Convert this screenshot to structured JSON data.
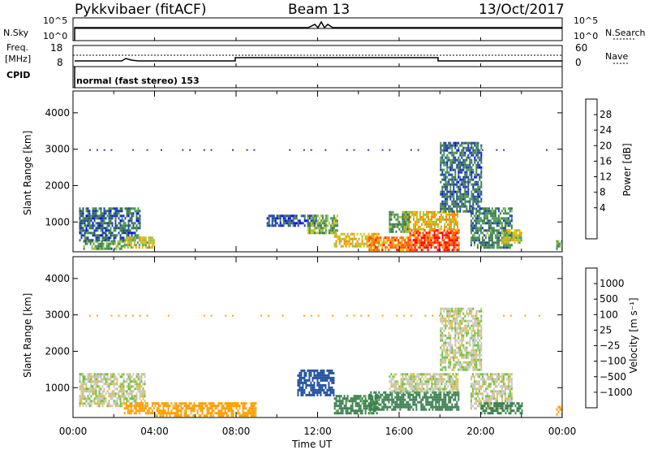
{
  "header": {
    "station": "Pykkvibaer (fitACF)",
    "beam": "Beam 13",
    "date": "13/Oct/2017"
  },
  "sky_panel": {
    "left_label": "N.Sky",
    "right_label": "N.Search",
    "left_ticks": [
      "10^5",
      "10^0"
    ],
    "right_ticks": [
      "10^5",
      "10^0"
    ]
  },
  "freq_panel": {
    "left_label_line1": "Freq.",
    "left_label_line2": "[MHz]",
    "right_label": "Nave",
    "left_ticks": [
      "18",
      "8"
    ],
    "right_ticks": [
      "60",
      "0"
    ]
  },
  "cpid": {
    "label": "CPID",
    "value": "normal (fast stereo) 153"
  },
  "colors": {
    "power_scale": [
      "#0000ff",
      "#2040a8",
      "#3c7a4a",
      "#4a9a5a",
      "#a0c040",
      "#e0c000",
      "#ff8c00",
      "#ff5000",
      "#ff0000"
    ],
    "velocity_scale": [
      "#2040ff",
      "#2050a0",
      "#3c8050",
      "#70c040",
      "#c8c8c8",
      "#d8c060",
      "#ffa000",
      "#ff6000",
      "#ff0000"
    ]
  },
  "chart_data": [
    {
      "type": "heatmap",
      "name": "power",
      "ylabel": "Slant Range [km]",
      "ylim": [
        180,
        4600
      ],
      "yticks": [
        1000,
        2000,
        3000,
        4000
      ],
      "xlim": [
        0,
        24
      ],
      "colorbar_label": "Power [dB]",
      "colorbar_ticks": [
        "28",
        "24",
        "20",
        "16",
        "12",
        "8",
        "4"
      ],
      "colorbar_range": [
        0,
        32
      ],
      "regions": [
        {
          "t0": 0.3,
          "t1": 3.3,
          "r0": 500,
          "r1": 1400,
          "level": 8
        },
        {
          "t0": 0.5,
          "t1": 2.5,
          "r0": 280,
          "r1": 500,
          "level": 12
        },
        {
          "t0": 2.5,
          "t1": 4.0,
          "r0": 300,
          "r1": 600,
          "level": 18
        },
        {
          "t0": 9.5,
          "t1": 12.0,
          "r0": 900,
          "r1": 1200,
          "level": 6
        },
        {
          "t0": 11.5,
          "t1": 13.0,
          "r0": 700,
          "r1": 1200,
          "level": 14
        },
        {
          "t0": 12.8,
          "t1": 15.0,
          "r0": 300,
          "r1": 700,
          "level": 20
        },
        {
          "t0": 14.5,
          "t1": 16.5,
          "r0": 250,
          "r1": 600,
          "level": 24
        },
        {
          "t0": 16.5,
          "t1": 18.9,
          "r0": 250,
          "r1": 800,
          "level": 28
        },
        {
          "t0": 16.2,
          "t1": 18.9,
          "r0": 800,
          "r1": 1300,
          "level": 20
        },
        {
          "t0": 15.5,
          "t1": 16.5,
          "r0": 700,
          "r1": 1300,
          "level": 12
        },
        {
          "t0": 18.0,
          "t1": 20.0,
          "r0": 1300,
          "r1": 3200,
          "level": 8
        },
        {
          "t0": 19.5,
          "t1": 21.5,
          "r0": 300,
          "r1": 1400,
          "level": 10
        },
        {
          "t0": 21.0,
          "t1": 22.0,
          "r0": 400,
          "r1": 800,
          "level": 18
        },
        {
          "t0": 23.7,
          "t1": 24.0,
          "r0": 250,
          "r1": 500,
          "level": 14
        }
      ]
    },
    {
      "type": "heatmap",
      "name": "velocity",
      "ylabel": "Slant Range [km]",
      "xlabel": "Time UT",
      "ylim": [
        180,
        4600
      ],
      "yticks": [
        1000,
        2000,
        3000,
        4000
      ],
      "xlim": [
        0,
        24
      ],
      "xticks": [
        "00:00",
        "04:00",
        "08:00",
        "12:00",
        "16:00",
        "20:00",
        "00:00"
      ],
      "colorbar_label": "Velocity [m s⁻¹]",
      "colorbar_ticks": [
        "1000",
        "500",
        "100",
        "25",
        "−25",
        "−100",
        "−500",
        "−1000"
      ],
      "regions": [
        {
          "t0": 0.3,
          "t1": 3.5,
          "r0": 500,
          "r1": 1400,
          "velocity": 0
        },
        {
          "t0": 2.5,
          "t1": 4.0,
          "r0": 300,
          "r1": 600,
          "velocity": -300
        },
        {
          "t0": 4.0,
          "t1": 9.0,
          "r0": 250,
          "r1": 600,
          "velocity": -150
        },
        {
          "t0": 11.0,
          "t1": 12.8,
          "r0": 800,
          "r1": 1500,
          "velocity": 600
        },
        {
          "t0": 12.8,
          "t1": 15.0,
          "r0": 300,
          "r1": 800,
          "velocity": 150
        },
        {
          "t0": 14.5,
          "t1": 18.9,
          "r0": 400,
          "r1": 900,
          "velocity": 300
        },
        {
          "t0": 15.5,
          "t1": 18.9,
          "r0": 900,
          "r1": 1400,
          "velocity": 0
        },
        {
          "t0": 18.0,
          "t1": 20.0,
          "r0": 1500,
          "r1": 3200,
          "velocity": 0
        },
        {
          "t0": 19.5,
          "t1": 21.5,
          "r0": 400,
          "r1": 1400,
          "velocity": 0
        },
        {
          "t0": 20.0,
          "t1": 22.0,
          "r0": 300,
          "r1": 600,
          "velocity": 300
        },
        {
          "t0": 23.7,
          "t1": 24.0,
          "r0": 250,
          "r1": 500,
          "velocity": -300
        }
      ]
    }
  ]
}
